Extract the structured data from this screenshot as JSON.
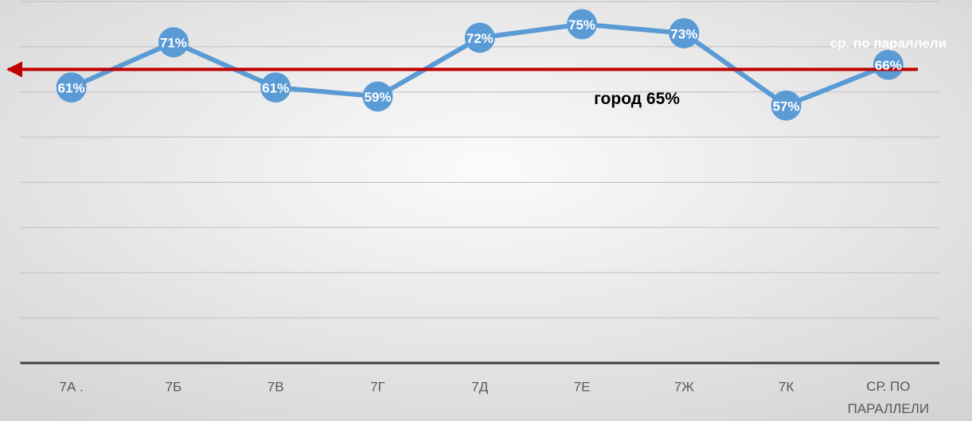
{
  "chart_data": {
    "type": "line",
    "categories": [
      "7А .",
      "7Б",
      "7В",
      "7Г",
      "7Д",
      "7Е",
      "7Ж",
      "7К",
      "СР. ПО ПАРАЛЛЕЛИ"
    ],
    "series": [
      {
        "color": "#5b9bd5",
        "values": [
          61,
          71,
          61,
          59,
          72,
          75,
          73,
          57,
          66
        ],
        "value_labels": [
          "61%",
          "71%",
          "61%",
          "59%",
          "72%",
          "75%",
          "73%",
          "57%",
          "66%"
        ]
      }
    ],
    "ylim": [
      0,
      80
    ],
    "yticks": [
      0,
      10,
      20,
      30,
      40,
      50,
      60,
      70,
      80
    ],
    "grid": true,
    "annotations": [
      "ср. по параллели"
    ],
    "reference_line": {
      "value": 65,
      "label": "город 65%",
      "color": "#c00000"
    }
  }
}
